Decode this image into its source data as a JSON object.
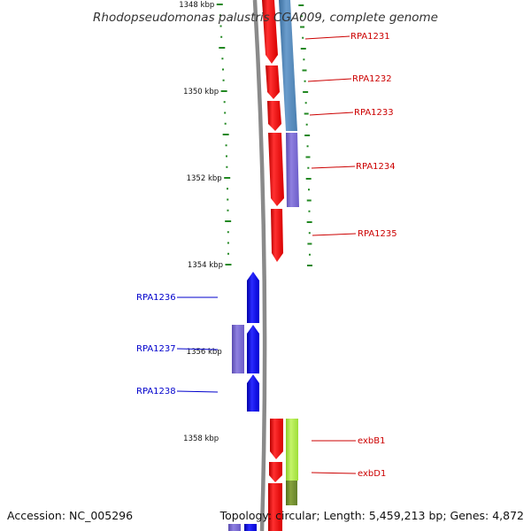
{
  "title": "Rhodopseudomonas palustris CGA009, complete genome",
  "footer": {
    "accession": "Accession: NC_005296",
    "summary": "Topology: circular; Length: 5,459,213 bp; Genes: 4,872"
  },
  "colors": {
    "forward_label": "#cc0000",
    "reverse_label": "#0000cc",
    "forward_cds": "#ff0000",
    "reverse_cds": "#0000ff",
    "cog_steelblue": "#4f86b8",
    "cog_purple": "#7b6bd0",
    "cog_lime": "#a6e93c",
    "cog_olive": "#6f8a2a",
    "backbone": "#888888",
    "tick": "#228822"
  },
  "scale": {
    "labels": [
      {
        "kbp": 1348,
        "text": "1348 kbp"
      },
      {
        "kbp": 1350,
        "text": "1350 kbp"
      },
      {
        "kbp": 1352,
        "text": "1352 kbp"
      },
      {
        "kbp": 1354,
        "text": "1354 kbp"
      },
      {
        "kbp": 1356,
        "text": "1356 kbp"
      },
      {
        "kbp": 1358,
        "text": "1358 kbp"
      }
    ]
  },
  "genes_forward": [
    {
      "label": "RPA1231"
    },
    {
      "label": "RPA1232"
    },
    {
      "label": "RPA1233"
    },
    {
      "label": "RPA1234"
    },
    {
      "label": "RPA1235"
    },
    {
      "label": "exbB1"
    },
    {
      "label": "exbD1"
    }
  ],
  "genes_reverse": [
    {
      "label": "RPA1236"
    },
    {
      "label": "RPA1237"
    },
    {
      "label": "RPA1238"
    }
  ]
}
